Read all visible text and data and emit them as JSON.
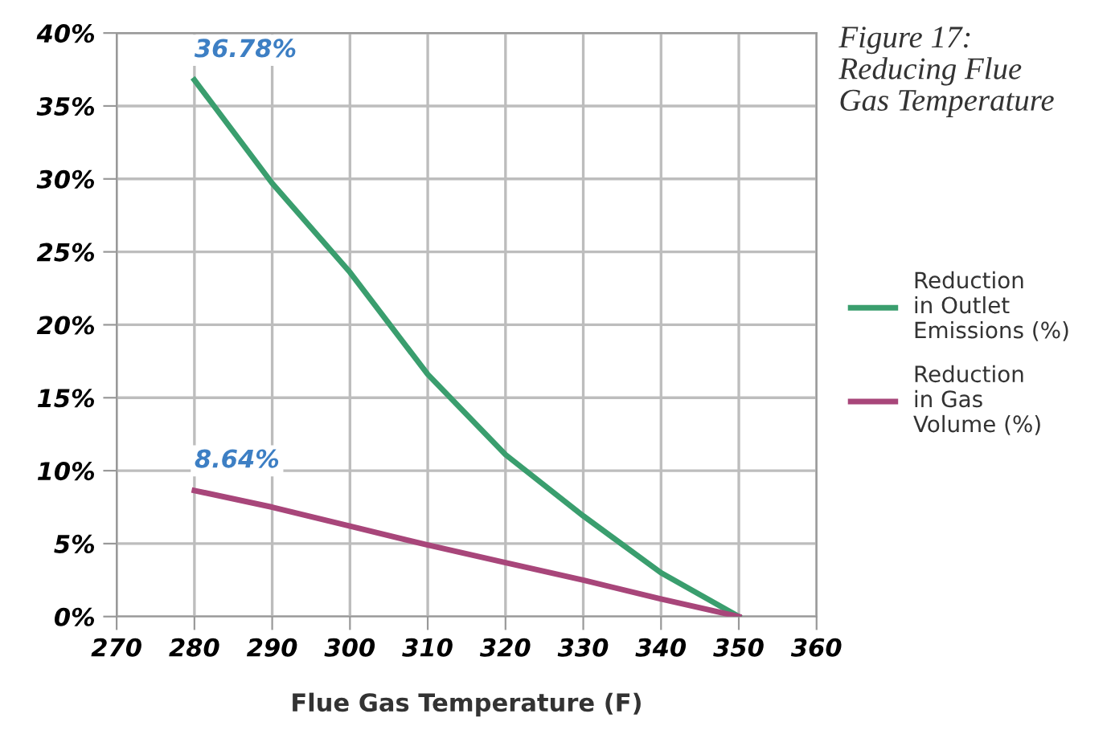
{
  "chart_data": {
    "type": "line",
    "title": "Figure 17:\nReducing Flue\nGas Temperature",
    "xlabel": "Flue Gas Temperature (F)",
    "x": [
      280,
      290,
      300,
      310,
      320,
      330,
      340,
      350
    ],
    "series": [
      {
        "name": "Reduction\nin Outlet\nEmissions (%)",
        "color": "#3a9e6e",
        "values": [
          36.78,
          29.7,
          23.6,
          16.6,
          11.1,
          6.9,
          3.0,
          0
        ]
      },
      {
        "name": "Reduction\nin Gas\nVolume (%)",
        "color": "#a8467a",
        "values": [
          8.64,
          7.5,
          6.2,
          4.9,
          3.7,
          2.5,
          1.2,
          0
        ]
      }
    ],
    "annotations": [
      {
        "text": "36.78%",
        "x": 280,
        "y": 36.78
      },
      {
        "text": "8.64%",
        "x": 280,
        "y": 8.64
      }
    ],
    "xlim": [
      270,
      360
    ],
    "xticks": [
      270,
      280,
      290,
      300,
      310,
      320,
      330,
      340,
      350,
      360
    ],
    "ylim": [
      0,
      40
    ],
    "yticks": [
      {
        "value": 0,
        "label": "0%"
      },
      {
        "value": 5,
        "label": "5%"
      },
      {
        "value": 10,
        "label": "10%"
      },
      {
        "value": 15,
        "label": "15%"
      },
      {
        "value": 20,
        "label": "20%"
      },
      {
        "value": 25,
        "label": "25%"
      },
      {
        "value": 30,
        "label": "30%"
      },
      {
        "value": 35,
        "label": "35%"
      },
      {
        "value": 40,
        "label": "40%"
      }
    ],
    "grid": true,
    "legend": "right",
    "marker": "none",
    "line_style": "solid"
  }
}
